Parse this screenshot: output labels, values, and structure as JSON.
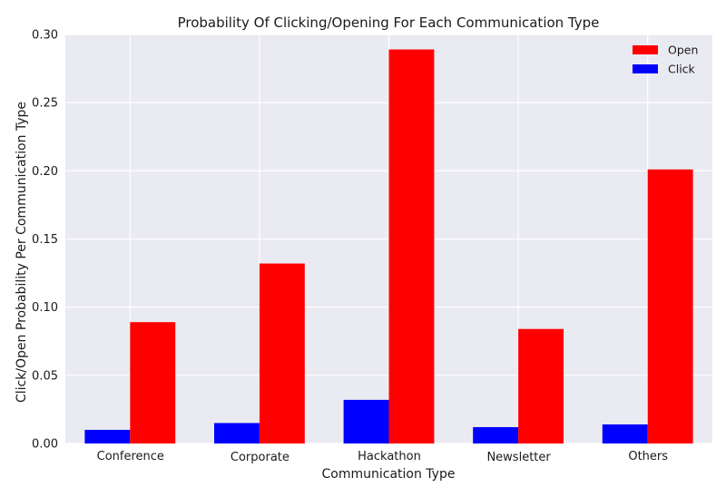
{
  "chart_data": {
    "type": "bar",
    "title": "Probability Of Clicking/Opening For Each Communication Type",
    "xlabel": "Communication Type",
    "ylabel": "Click/Open Probability Per Communication Type",
    "categories": [
      "Conference",
      "Corporate",
      "Hackathon",
      "Newsletter",
      "Others"
    ],
    "series": [
      {
        "name": "Click",
        "color": "#0000ff",
        "values": [
          0.01,
          0.015,
          0.032,
          0.012,
          0.014
        ]
      },
      {
        "name": "Open",
        "color": "#ff0000",
        "values": [
          0.089,
          0.132,
          0.289,
          0.084,
          0.201
        ]
      }
    ],
    "ylim": [
      0,
      0.3
    ],
    "yticks": [
      "0.00",
      "0.05",
      "0.10",
      "0.15",
      "0.20",
      "0.25",
      "0.30"
    ],
    "legend": {
      "position": "top-right",
      "order": [
        "Open",
        "Click"
      ]
    },
    "grid": true,
    "background": "#eaeaf2"
  }
}
